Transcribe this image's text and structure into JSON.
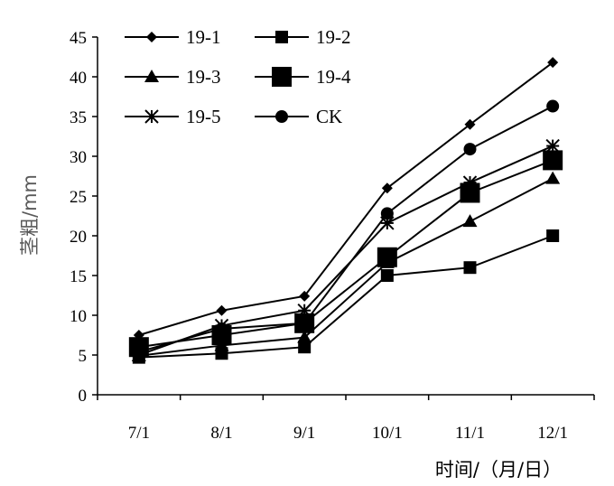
{
  "chart_data": {
    "type": "line",
    "title": "",
    "xlabel": "时间/（月/日）",
    "ylabel": "茎粗/mm",
    "categories": [
      "7/1",
      "8/1",
      "9/1",
      "10/1",
      "11/1",
      "12/1"
    ],
    "ylim": [
      0,
      45
    ],
    "yticks": [
      0,
      5,
      10,
      15,
      20,
      25,
      30,
      35,
      40,
      45
    ],
    "grid": false,
    "legend_position": "top-left",
    "series": [
      {
        "name": "19-1",
        "marker": "diamond",
        "values": [
          7.5,
          10.6,
          12.4,
          26.0,
          34.0,
          41.8
        ]
      },
      {
        "name": "19-2",
        "marker": "square-small",
        "values": [
          4.7,
          5.2,
          6.0,
          15.0,
          16.0,
          20.0
        ]
      },
      {
        "name": "19-3",
        "marker": "triangle",
        "values": [
          4.9,
          6.2,
          7.2,
          16.6,
          21.8,
          27.2
        ]
      },
      {
        "name": "19-4",
        "marker": "square-large",
        "values": [
          6.0,
          7.5,
          9.0,
          17.3,
          25.4,
          29.5
        ]
      },
      {
        "name": "19-5",
        "marker": "star",
        "values": [
          5.0,
          8.7,
          10.6,
          21.6,
          26.7,
          31.3
        ]
      },
      {
        "name": "CK",
        "marker": "circle",
        "values": [
          5.4,
          8.3,
          9.0,
          22.8,
          30.9,
          36.3
        ]
      }
    ]
  }
}
